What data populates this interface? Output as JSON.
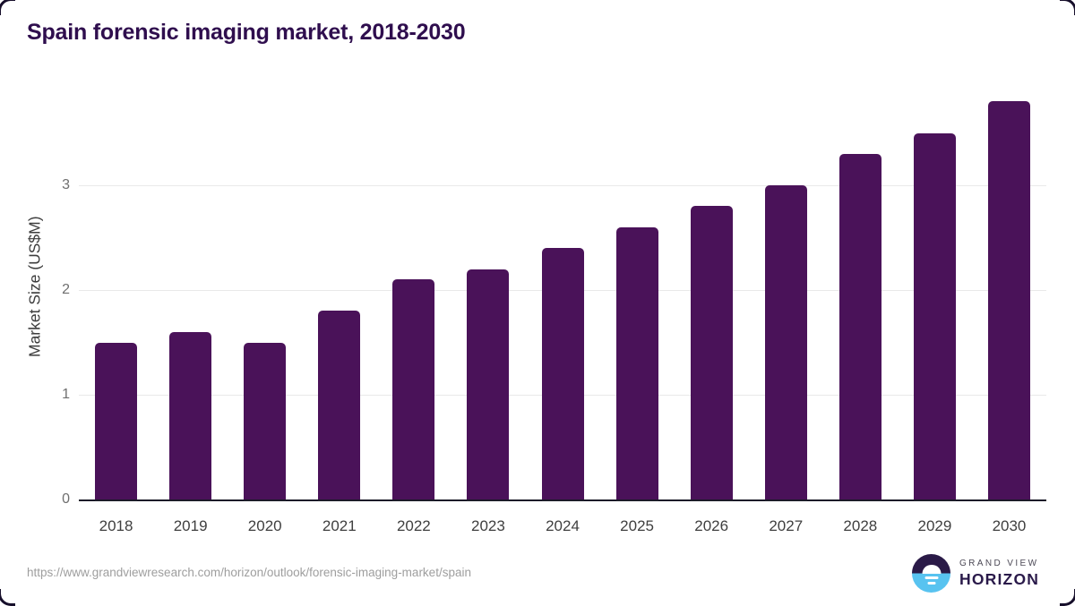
{
  "title": "Spain forensic imaging market, 2018-2030",
  "source_url": "https://www.grandviewresearch.com/horizon/outlook/forensic-imaging-market/spain",
  "logo": {
    "line1": "GRAND VIEW",
    "line2": "HORIZON",
    "circle_top_color": "#2a1a47",
    "circle_bottom_color": "#58c3f0"
  },
  "chart_data": {
    "type": "bar",
    "title": "Spain forensic imaging market, 2018-2030",
    "categories": [
      "2018",
      "2019",
      "2020",
      "2021",
      "2022",
      "2023",
      "2024",
      "2025",
      "2026",
      "2027",
      "2028",
      "2029",
      "2030"
    ],
    "values": [
      1.5,
      1.6,
      1.5,
      1.8,
      2.1,
      2.2,
      2.4,
      2.6,
      2.8,
      3.0,
      3.3,
      3.5,
      3.8
    ],
    "xlabel": "",
    "ylabel": "Market Size (US$M)",
    "ylim": [
      0,
      3.9
    ],
    "yticks": [
      0,
      1,
      2,
      3
    ],
    "bar_color": "#4a1259",
    "grid": true,
    "gridline_color": "#e9e9e9",
    "legend": false
  }
}
